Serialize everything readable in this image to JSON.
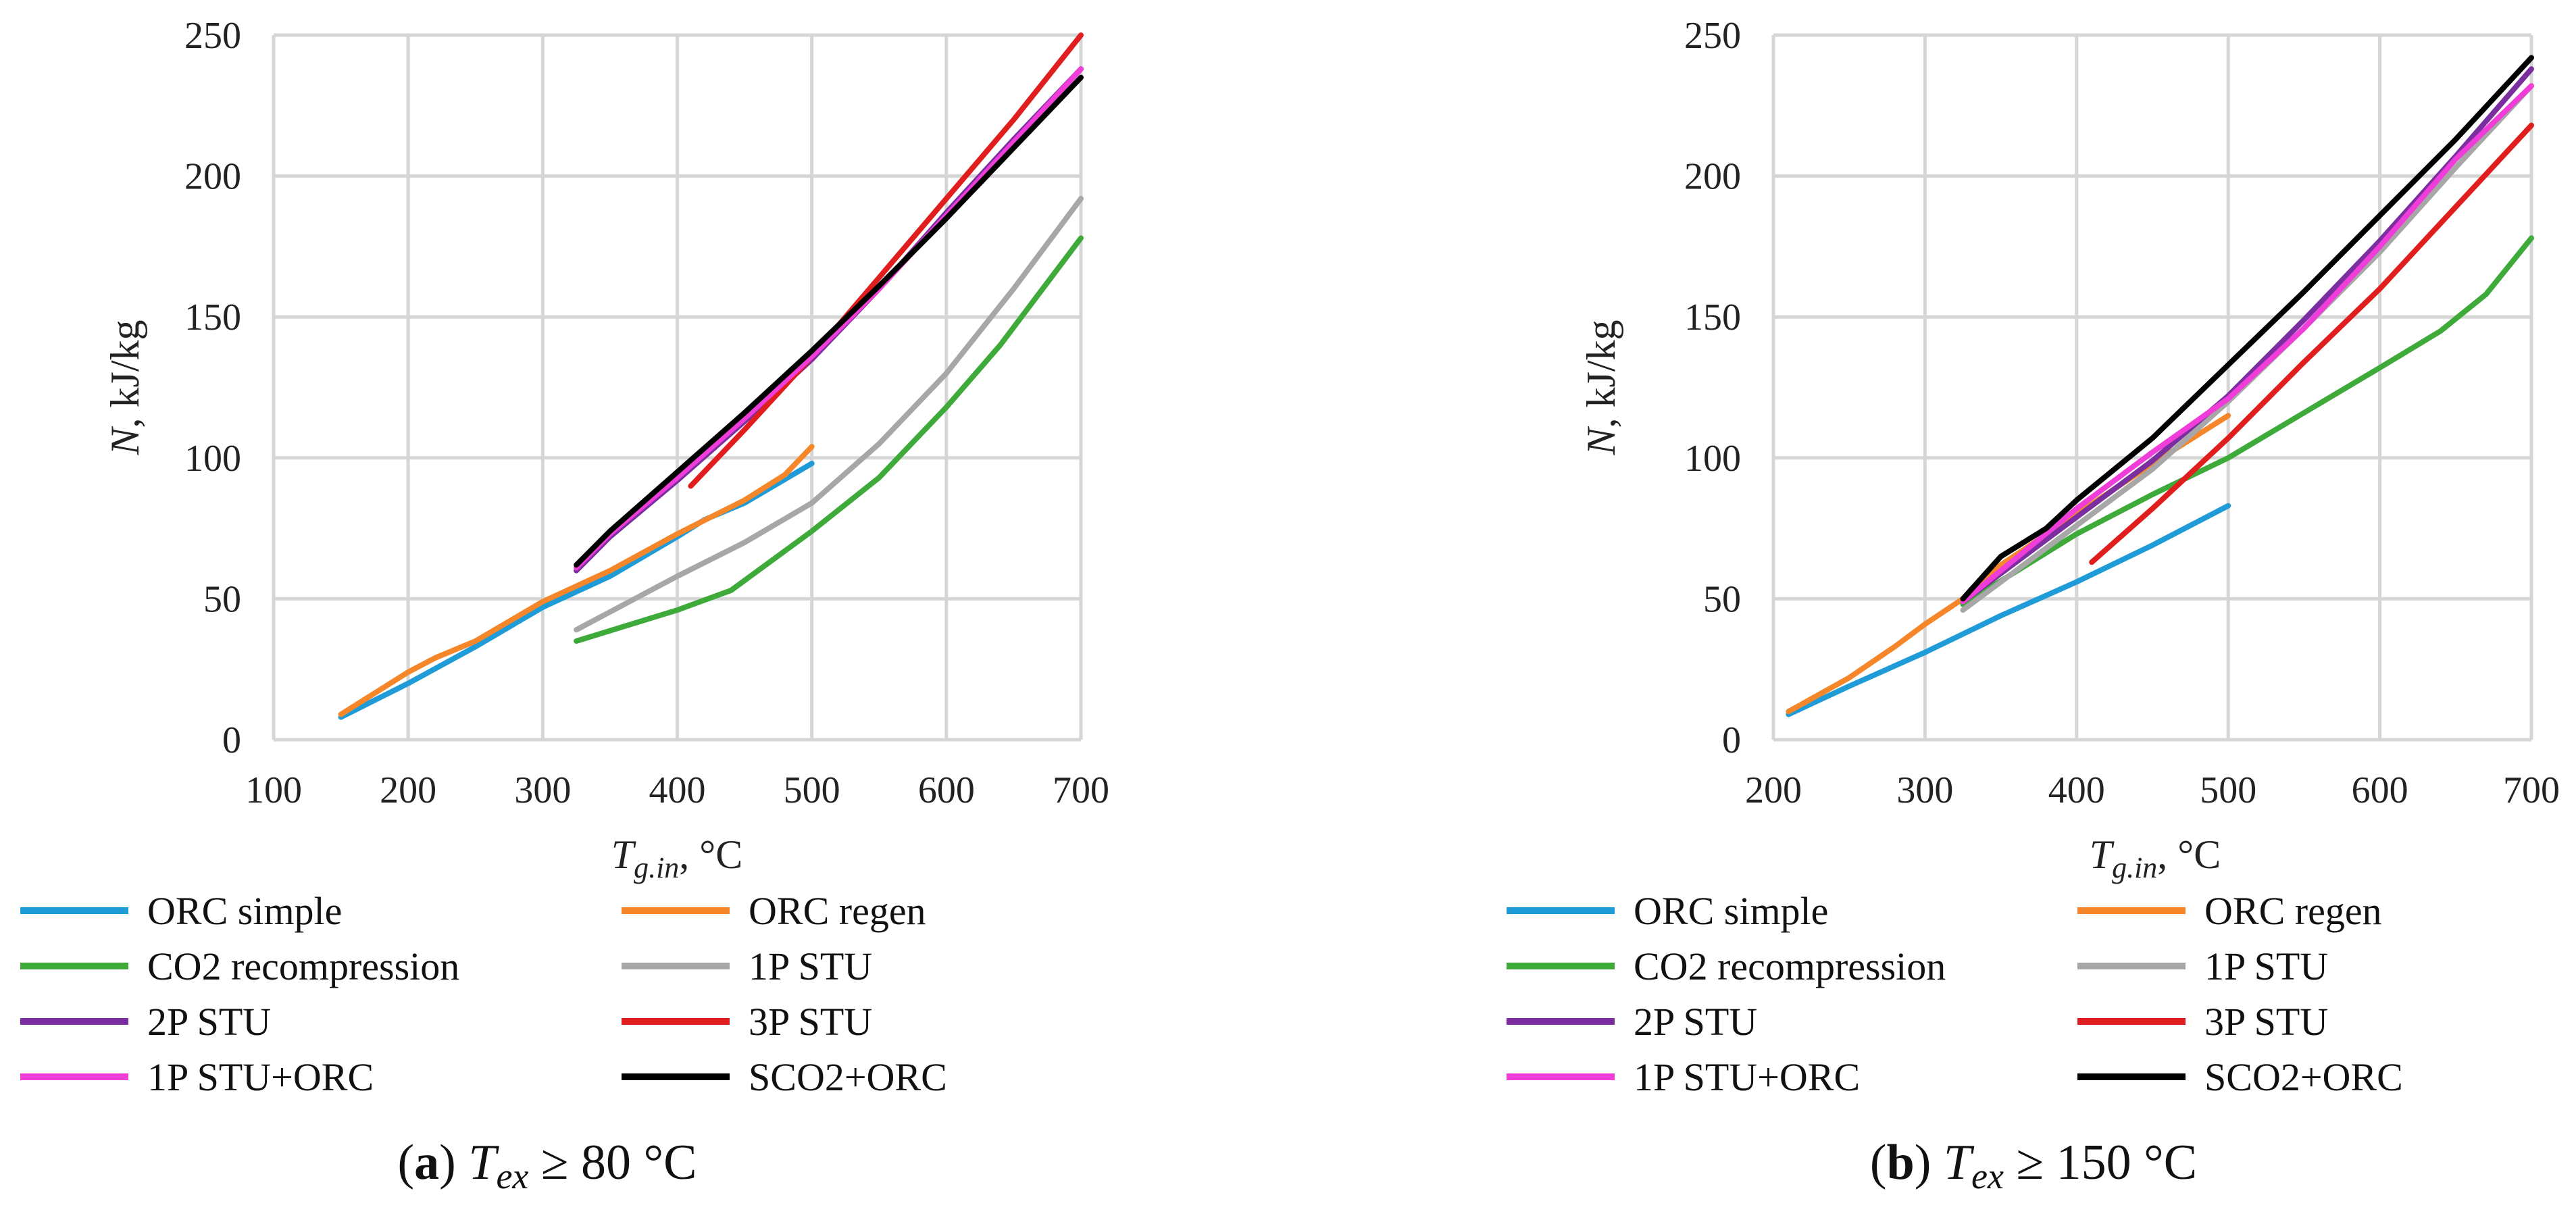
{
  "chart_data": [
    {
      "type": "line",
      "caption": {
        "letter": "a",
        "open": "(",
        "close": ")",
        "var": "T",
        "sub": "ex",
        "rest": " ≥ 80 °C"
      },
      "xlabel": {
        "var": "T",
        "sub": "g.in",
        "rest": ", °C"
      },
      "ylabel": {
        "var": "N",
        "rest": ", kJ/kg"
      },
      "xlim": [
        100,
        700
      ],
      "ylim": [
        0,
        250
      ],
      "xticks": [
        100,
        200,
        300,
        400,
        500,
        600,
        700
      ],
      "yticks": [
        0,
        50,
        100,
        150,
        200,
        250
      ],
      "grid": true,
      "legend_position": "bottom",
      "series": [
        {
          "name": "ORC simple",
          "color": "#1f9bd8",
          "x": [
            150,
            200,
            250,
            300,
            350,
            400,
            420,
            450,
            500
          ],
          "y": [
            8,
            20,
            33,
            47,
            58,
            72,
            78,
            84,
            98
          ]
        },
        {
          "name": "ORC regen",
          "color": "#f5862a",
          "x": [
            150,
            200,
            220,
            250,
            300,
            350,
            400,
            450,
            480,
            500
          ],
          "y": [
            9,
            24,
            29,
            35,
            49,
            60,
            73,
            85,
            94,
            104
          ]
        },
        {
          "name": "CO2 recompression",
          "color": "#3daa3a",
          "x": [
            325,
            400,
            440,
            500,
            550,
            600,
            640,
            700
          ],
          "y": [
            35,
            46,
            53,
            74,
            93,
            118,
            140,
            178
          ]
        },
        {
          "name": "1P STU",
          "color": "#a7a7a7",
          "x": [
            325,
            400,
            450,
            500,
            550,
            600,
            650,
            700
          ],
          "y": [
            39,
            58,
            70,
            84,
            105,
            130,
            160,
            192
          ]
        },
        {
          "name": "2P STU",
          "color": "#7b2e9f",
          "x": [
            325,
            350,
            400,
            450,
            500,
            550,
            600,
            650,
            700
          ],
          "y": [
            60,
            72,
            92,
            113,
            135,
            160,
            187,
            213,
            238
          ]
        },
        {
          "name": "3P STU",
          "color": "#e01e1e",
          "x": [
            410,
            450,
            500,
            550,
            600,
            650,
            700
          ],
          "y": [
            90,
            110,
            136,
            164,
            192,
            220,
            250
          ]
        },
        {
          "name": "1P STU+ORC",
          "color": "#f03cd8",
          "x": [
            325,
            350,
            400,
            450,
            500,
            550,
            600,
            650,
            700
          ],
          "y": [
            61,
            73,
            93,
            114,
            136,
            160,
            186,
            212,
            238
          ]
        },
        {
          "name": "SCO2+ORC",
          "color": "#000000",
          "x": [
            325,
            350,
            400,
            450,
            500,
            550,
            600,
            650,
            700
          ],
          "y": [
            62,
            74,
            95,
            116,
            138,
            161,
            185,
            210,
            235
          ]
        }
      ]
    },
    {
      "type": "line",
      "caption": {
        "letter": "b",
        "open": "(",
        "close": ")",
        "var": "T",
        "sub": "ex",
        "rest": " ≥ 150 °C"
      },
      "xlabel": {
        "var": "T",
        "sub": "g.in",
        "rest": ", °C"
      },
      "ylabel": {
        "var": "N",
        "rest": ", kJ/kg"
      },
      "xlim": [
        200,
        700
      ],
      "ylim": [
        0,
        250
      ],
      "xticks": [
        200,
        300,
        400,
        500,
        600,
        700
      ],
      "yticks": [
        0,
        50,
        100,
        150,
        200,
        250
      ],
      "grid": true,
      "legend_position": "bottom",
      "series": [
        {
          "name": "ORC simple",
          "color": "#1f9bd8",
          "x": [
            210,
            250,
            300,
            350,
            400,
            450,
            500
          ],
          "y": [
            9,
            19,
            31,
            44,
            56,
            69,
            83
          ]
        },
        {
          "name": "ORC regen",
          "color": "#f5862a",
          "x": [
            210,
            250,
            280,
            300,
            325,
            350,
            400,
            450,
            500
          ],
          "y": [
            10,
            22,
            33,
            41,
            50,
            62,
            80,
            98,
            115
          ]
        },
        {
          "name": "CO2 recompression",
          "color": "#3daa3a",
          "x": [
            325,
            400,
            450,
            500,
            550,
            600,
            640,
            670,
            700
          ],
          "y": [
            48,
            73,
            87,
            100,
            116,
            132,
            145,
            158,
            178
          ]
        },
        {
          "name": "1P STU",
          "color": "#a7a7a7",
          "x": [
            325,
            350,
            400,
            450,
            500,
            550,
            600,
            650,
            700
          ],
          "y": [
            46,
            56,
            76,
            96,
            120,
            146,
            173,
            203,
            232
          ]
        },
        {
          "name": "2P STU",
          "color": "#7b2e9f",
          "x": [
            325,
            350,
            400,
            450,
            500,
            550,
            600,
            650,
            700
          ],
          "y": [
            49,
            59,
            79,
            99,
            122,
            149,
            177,
            207,
            238
          ]
        },
        {
          "name": "3P STU",
          "color": "#e01e1e",
          "x": [
            410,
            450,
            500,
            550,
            600,
            650,
            700
          ],
          "y": [
            63,
            82,
            107,
            134,
            160,
            189,
            218
          ]
        },
        {
          "name": "1P STU+ORC",
          "color": "#f03cd8",
          "x": [
            325,
            350,
            400,
            450,
            500,
            550,
            600,
            650,
            700
          ],
          "y": [
            49,
            60,
            82,
            102,
            121,
            146,
            175,
            206,
            232
          ]
        },
        {
          "name": "SCO2+ORC",
          "color": "#000000",
          "x": [
            325,
            350,
            380,
            400,
            450,
            500,
            550,
            600,
            650,
            700
          ],
          "y": [
            50,
            65,
            75,
            85,
            107,
            133,
            159,
            186,
            213,
            242
          ]
        }
      ]
    }
  ]
}
